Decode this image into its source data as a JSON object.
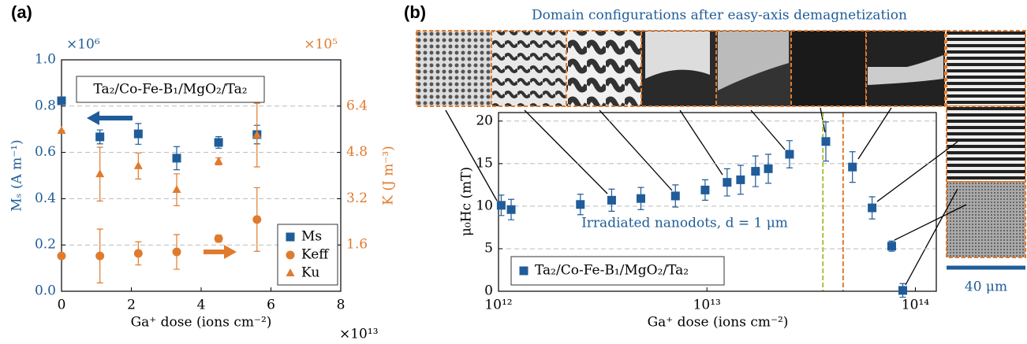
{
  "chart_data": [
    {
      "type": "scatter",
      "panel_label": "(a)",
      "annotation": "Ta₂/Co-Fe-B₁/MgO₂/Ta₂",
      "xlabel": "Ga⁺ dose (ions cm⁻²)",
      "x_multiplier": "×10¹³",
      "ylabel": "Mₛ (A m⁻¹)",
      "y_multiplier": "×10⁶",
      "ycolor": "#1f5c99",
      "y2label": "K (J m⁻³)",
      "y2_multiplier": "×10⁵",
      "y2color": "#e07b2e",
      "xlim": [
        0,
        8
      ],
      "xticks": [
        0,
        2,
        4,
        6,
        8
      ],
      "ylim": [
        0,
        1
      ],
      "yticks": [
        {
          "value": 0,
          "label": "0.0"
        },
        0.2,
        0.4,
        0.6,
        0.8,
        {
          "value": 1,
          "label": "1.0"
        }
      ],
      "y2lim": [
        0,
        8
      ],
      "y2ticks": [
        1.6,
        3.2,
        4.8,
        6.4
      ],
      "grid": true,
      "legend": "lower right",
      "x": [
        0,
        1.1,
        2.2,
        3.3,
        4.5,
        5.6
      ],
      "series": [
        {
          "name": "Ms",
          "marker": "square",
          "color": "#1f5c99",
          "values": [
            0.823,
            0.667,
            0.68,
            0.575,
            0.643,
            0.677
          ],
          "errors": [
            0.015,
            0.03,
            0.045,
            0.05,
            0.025,
            0.04
          ]
        },
        {
          "name": "Keff",
          "marker": "circle",
          "color": "#e07b2e",
          "axis": "y2",
          "values": [
            1.22,
            1.22,
            1.31,
            1.36,
            1.82,
            2.48
          ],
          "errors": [
            0,
            0.93,
            0.4,
            0.6,
            0.12,
            1.1
          ]
        },
        {
          "name": "Ku",
          "marker": "triangle",
          "color": "#e07b2e",
          "axis": "y2",
          "values": [
            5.55,
            4.05,
            4.33,
            3.51,
            4.49,
            5.4
          ],
          "errors": [
            0,
            0.93,
            0.45,
            0.55,
            0.12,
            1.1
          ]
        }
      ]
    },
    {
      "type": "scatter",
      "panel_label": "(b)",
      "title": "Domain configurations after easy-axis demagnetization",
      "annotation": "Irradiated nanodots, d = 1 μm",
      "scale_label": "40 μm",
      "xlabel": "Ga⁺ dose (ions cm⁻²)",
      "ylabel": "μ₀Hc (mT)",
      "xscale": "log",
      "xlim": [
        1000000000000.0,
        126000000000000.0
      ],
      "xticks": [
        {
          "value": 1000000000000.0,
          "label": "10¹²"
        },
        {
          "value": 10000000000000.0,
          "label": "10¹³"
        },
        {
          "value": 100000000000000.0,
          "label": "10¹⁴"
        }
      ],
      "ylim": [
        0,
        21
      ],
      "yticks": [
        0,
        5,
        10,
        15,
        20
      ],
      "grid": true,
      "legend": "lower left",
      "reference_lines": [
        {
          "x": 36000000000000.0,
          "color": "#a8c23a"
        },
        {
          "x": 45000000000000.0,
          "color": "#e07b2e"
        }
      ],
      "x": [
        1030000000000.0,
        1150000000000.0,
        2470000000000.0,
        3490000000000.0,
        4820000000000.0,
        7060000000000.0,
        9800000000000.0,
        12500000000000.0,
        14500000000000.0,
        17100000000000.0,
        19700000000000.0,
        24900000000000.0,
        37200000000000.0,
        49900000000000.0,
        62000000000000.0,
        77000000000000.0,
        87000000000000.0
      ],
      "series": [
        {
          "name": "Ta₂/Co-Fe-B₁/MgO₂/Ta₂",
          "marker": "square",
          "color": "#1f5c99",
          "values": [
            10.1,
            9.6,
            10.2,
            10.7,
            10.9,
            11.2,
            11.9,
            12.8,
            13.1,
            14.1,
            14.4,
            16.1,
            17.6,
            14.6,
            9.8,
            5.3,
            0.1
          ],
          "errors": [
            1.2,
            1.2,
            1.2,
            1.3,
            1.3,
            1.3,
            1.2,
            1.6,
            1.7,
            1.8,
            1.7,
            1.6,
            2.3,
            1.8,
            1.3,
            0.6,
            0.8
          ]
        }
      ]
    }
  ]
}
